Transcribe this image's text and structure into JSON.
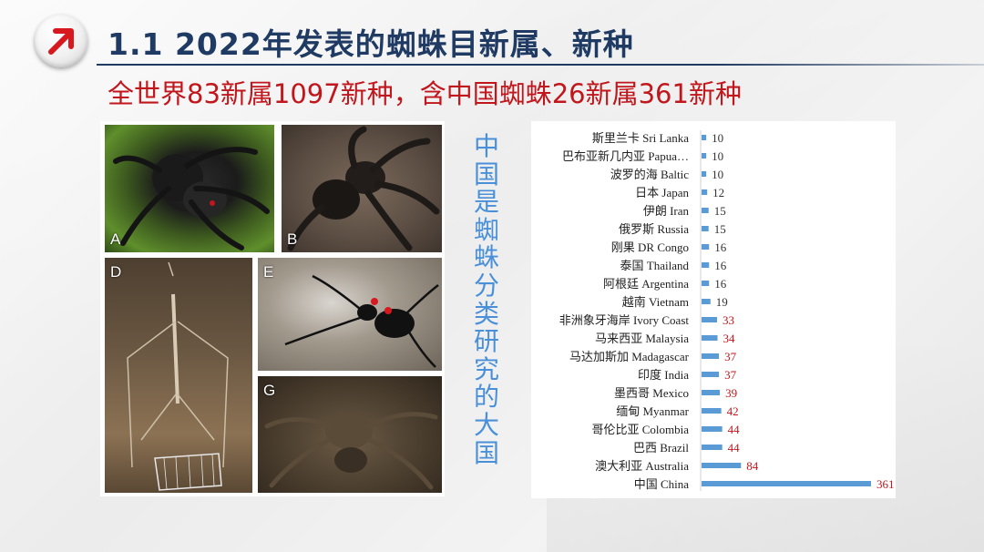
{
  "header": {
    "title": "1.1 2022年发表的蜘蛛目新属、新种",
    "subtitle": "全世界83新属1097新种，含中国蜘蛛26新属361新种"
  },
  "logo": {
    "icon": "arrow-up-right-icon",
    "color": "#d7191f"
  },
  "photos": [
    {
      "label": "A"
    },
    {
      "label": "B"
    },
    {
      "label": "D"
    },
    {
      "label": "E"
    },
    {
      "label": "G"
    }
  ],
  "side_caption": "中国是蜘蛛分类研究的大国",
  "colors": {
    "bar": "#5b9bd5",
    "label_small": "#333333",
    "label_large": "#c0161c",
    "title": "#1f3a63",
    "subtitle": "#c0161c"
  },
  "chart_data": {
    "type": "bar",
    "orientation": "horizontal",
    "categories": [
      "斯里兰卡 Sri Lanka",
      "巴布亚新几内亚 Papua…",
      "波罗的海 Baltic",
      "日本 Japan",
      "伊朗 Iran",
      "俄罗斯 Russia",
      "刚果 DR Congo",
      "泰国 Thailand",
      "阿根廷 Argentina",
      "越南 Vietnam",
      "非洲象牙海岸 Ivory Coast",
      "马来西亚 Malaysia",
      "马达加斯加 Madagascar",
      "印度 India",
      "墨西哥 Mexico",
      "缅甸 Myanmar",
      "哥伦比亚 Colombia",
      "巴西 Brazil",
      "澳大利亚 Australia",
      "中国 China"
    ],
    "values": [
      10,
      10,
      10,
      12,
      15,
      15,
      16,
      16,
      16,
      19,
      33,
      34,
      37,
      37,
      39,
      42,
      44,
      44,
      84,
      361
    ],
    "data_label_color_threshold": 30,
    "xlim": [
      0,
      361
    ],
    "grid": false,
    "legend": "none"
  }
}
